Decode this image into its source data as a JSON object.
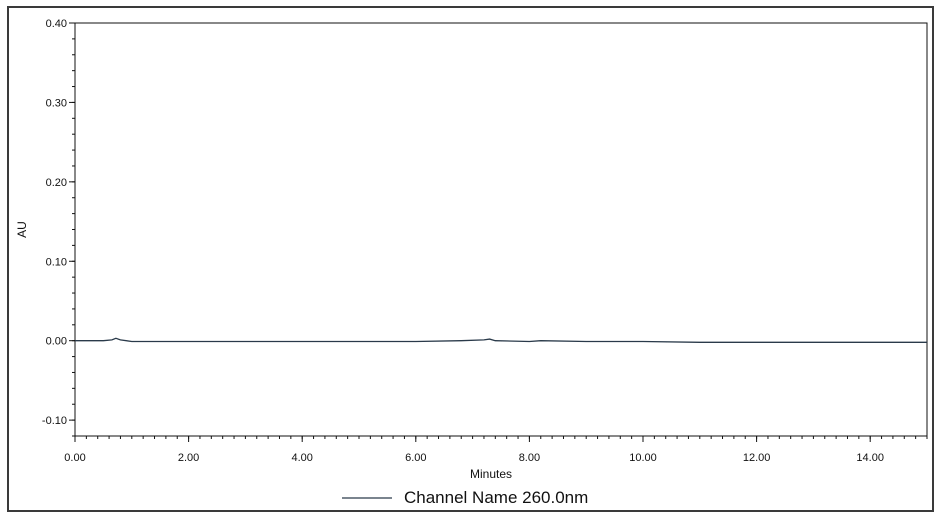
{
  "chart_data": {
    "type": "line",
    "title": "",
    "xlabel": "Minutes",
    "ylabel": "AU",
    "xlim": [
      0,
      15
    ],
    "ylim": [
      -0.12,
      0.4
    ],
    "x_ticks": [
      0,
      2,
      4,
      6,
      8,
      10,
      12,
      14
    ],
    "x_tick_labels": [
      "0.00",
      "2.00",
      "4.00",
      "6.00",
      "8.00",
      "10.00",
      "12.00",
      "14.00"
    ],
    "y_ticks": [
      -0.1,
      0.0,
      0.1,
      0.2,
      0.3,
      0.4
    ],
    "y_tick_labels": [
      "-0.10",
      "0.00",
      "0.10",
      "0.20",
      "0.30",
      "0.40"
    ],
    "grid": false,
    "legend_position": "bottom-center",
    "colors": {
      "series": "#2a3a4a",
      "axis": "#111111"
    },
    "series": [
      {
        "name": "Channel Name 260.0nm",
        "x": [
          0.0,
          0.5,
          0.65,
          0.72,
          0.8,
          1.0,
          1.5,
          2.0,
          3.0,
          4.0,
          5.0,
          6.0,
          6.8,
          7.2,
          7.3,
          7.4,
          8.0,
          8.2,
          9.0,
          10.0,
          11.0,
          12.0,
          13.0,
          14.0,
          15.0
        ],
        "y": [
          0.0,
          0.0,
          0.001,
          0.003,
          0.001,
          -0.001,
          -0.001,
          -0.001,
          -0.001,
          -0.001,
          -0.001,
          -0.001,
          0.0,
          0.001,
          0.002,
          0.0,
          -0.001,
          0.0,
          -0.001,
          -0.001,
          -0.002,
          -0.002,
          -0.002,
          -0.002,
          -0.002
        ]
      }
    ]
  }
}
